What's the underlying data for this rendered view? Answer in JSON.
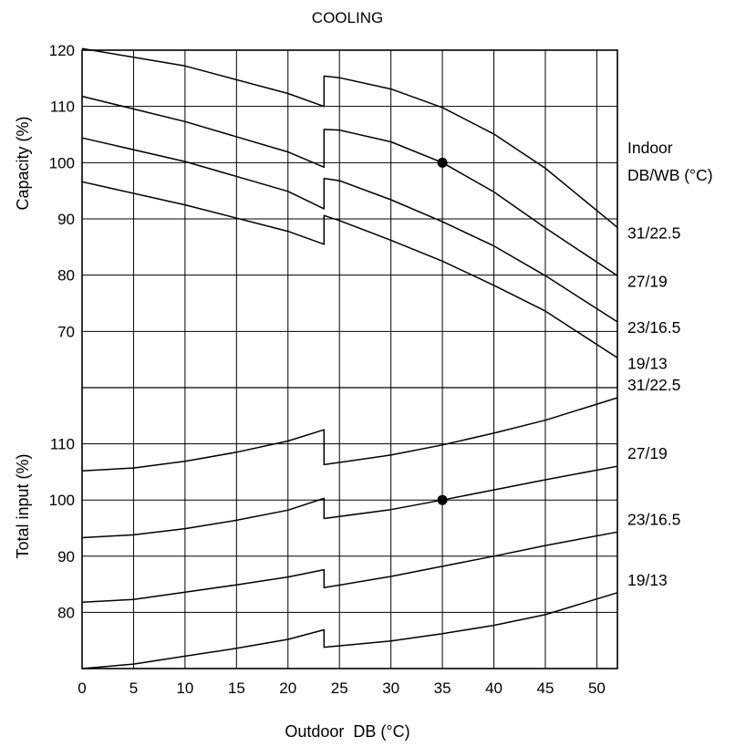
{
  "chart_data": {
    "type": "line",
    "title": "COOLING",
    "xlabel": "Outdoor  DB (°C)",
    "xlim": [
      0,
      52
    ],
    "x_ticks": [
      0,
      5,
      10,
      15,
      20,
      25,
      30,
      35,
      40,
      45,
      50
    ],
    "legend_title": [
      "Indoor",
      "DB/WB (°C)"
    ],
    "grid": true,
    "panels": [
      {
        "id": "capacity",
        "ylabel": "Capacity (%)",
        "ylim": [
          60,
          120
        ],
        "y_ticks": [
          70,
          80,
          90,
          100,
          110,
          120
        ],
        "series": [
          {
            "name": "31/22.5",
            "segments": [
              [
                [
                  0,
                  120.3
                ],
                [
                  10,
                  117.2
                ],
                [
                  20,
                  112.3
                ],
                [
                  23.5,
                  110
                ]
              ],
              [
                [
                  23.5,
                  115.4
                ],
                [
                  25,
                  115.1
                ],
                [
                  30,
                  113.1
                ],
                [
                  35,
                  109.8
                ],
                [
                  40,
                  105.1
                ],
                [
                  45,
                  99.0
                ],
                [
                  52,
                  88.5
                ]
              ]
            ]
          },
          {
            "name": "27/19",
            "segments": [
              [
                [
                  0,
                  111.8
                ],
                [
                  10,
                  107.3
                ],
                [
                  20,
                  101.9
                ],
                [
                  23.5,
                  99.2
                ]
              ],
              [
                [
                  23.5,
                  105.9
                ],
                [
                  25,
                  105.8
                ],
                [
                  30,
                  103.7
                ],
                [
                  35,
                  100.0
                ],
                [
                  40,
                  94.8
                ],
                [
                  45,
                  88.4
                ],
                [
                  52,
                  79.9
                ]
              ]
            ]
          },
          {
            "name": "23/16.5",
            "segments": [
              [
                [
                  0,
                  104.4
                ],
                [
                  10,
                  100.2
                ],
                [
                  20,
                  94.9
                ],
                [
                  23.5,
                  91.8
                ]
              ],
              [
                [
                  23.5,
                  97.2
                ],
                [
                  25,
                  96.8
                ],
                [
                  30,
                  93.4
                ],
                [
                  35,
                  89.5
                ],
                [
                  40,
                  85.2
                ],
                [
                  45,
                  79.9
                ],
                [
                  52,
                  71.7
                ]
              ]
            ]
          },
          {
            "name": "19/13",
            "segments": [
              [
                [
                  0,
                  96.6
                ],
                [
                  10,
                  92.5
                ],
                [
                  20,
                  87.8
                ],
                [
                  23.5,
                  85.5
                ]
              ],
              [
                [
                  23.5,
                  90.6
                ],
                [
                  25,
                  89.7
                ],
                [
                  30,
                  86.2
                ],
                [
                  35,
                  82.5
                ],
                [
                  40,
                  78.2
                ],
                [
                  45,
                  73.6
                ],
                [
                  52,
                  65.3
                ]
              ]
            ]
          }
        ],
        "marked_points": [
          {
            "x": 35,
            "y": 100
          }
        ]
      },
      {
        "id": "total_input",
        "ylabel": "Total input (%)",
        "ylim": [
          70,
          120
        ],
        "y_ticks": [
          80,
          90,
          100,
          110
        ],
        "series": [
          {
            "name": "31/22.5",
            "segments": [
              [
                [
                  0,
                  105.2
                ],
                [
                  5,
                  105.7
                ],
                [
                  10,
                  106.9
                ],
                [
                  15,
                  108.5
                ],
                [
                  20,
                  110.5
                ],
                [
                  23.5,
                  112.5
                ]
              ],
              [
                [
                  23.5,
                  106.3
                ],
                [
                  30,
                  108.0
                ],
                [
                  35,
                  109.8
                ],
                [
                  40,
                  111.9
                ],
                [
                  45,
                  114.2
                ],
                [
                  52,
                  118.2
                ]
              ]
            ]
          },
          {
            "name": "27/19",
            "segments": [
              [
                [
                  0,
                  93.3
                ],
                [
                  5,
                  93.8
                ],
                [
                  10,
                  94.9
                ],
                [
                  15,
                  96.4
                ],
                [
                  20,
                  98.2
                ],
                [
                  23.5,
                  100.3
                ]
              ],
              [
                [
                  23.5,
                  96.7
                ],
                [
                  30,
                  98.3
                ],
                [
                  35,
                  100.0
                ],
                [
                  40,
                  101.8
                ],
                [
                  45,
                  103.6
                ],
                [
                  52,
                  106.0
                ]
              ]
            ]
          },
          {
            "name": "23/16.5",
            "segments": [
              [
                [
                  0,
                  81.8
                ],
                [
                  5,
                  82.3
                ],
                [
                  10,
                  83.6
                ],
                [
                  15,
                  84.9
                ],
                [
                  20,
                  86.3
                ],
                [
                  23.5,
                  87.6
                ]
              ],
              [
                [
                  23.5,
                  84.4
                ],
                [
                  30,
                  86.4
                ],
                [
                  35,
                  88.2
                ],
                [
                  40,
                  90.0
                ],
                [
                  45,
                  91.9
                ],
                [
                  52,
                  94.3
                ]
              ]
            ]
          },
          {
            "name": "19/13",
            "segments": [
              [
                [
                  0,
                  70.0
                ],
                [
                  5,
                  70.8
                ],
                [
                  10,
                  72.2
                ],
                [
                  15,
                  73.6
                ],
                [
                  20,
                  75.2
                ],
                [
                  23.5,
                  76.9
                ]
              ],
              [
                [
                  23.5,
                  73.8
                ],
                [
                  30,
                  74.9
                ],
                [
                  35,
                  76.2
                ],
                [
                  40,
                  77.7
                ],
                [
                  45,
                  79.6
                ],
                [
                  52,
                  83.5
                ]
              ]
            ]
          }
        ],
        "marked_points": [
          {
            "x": 35,
            "y": 100
          }
        ]
      }
    ]
  }
}
